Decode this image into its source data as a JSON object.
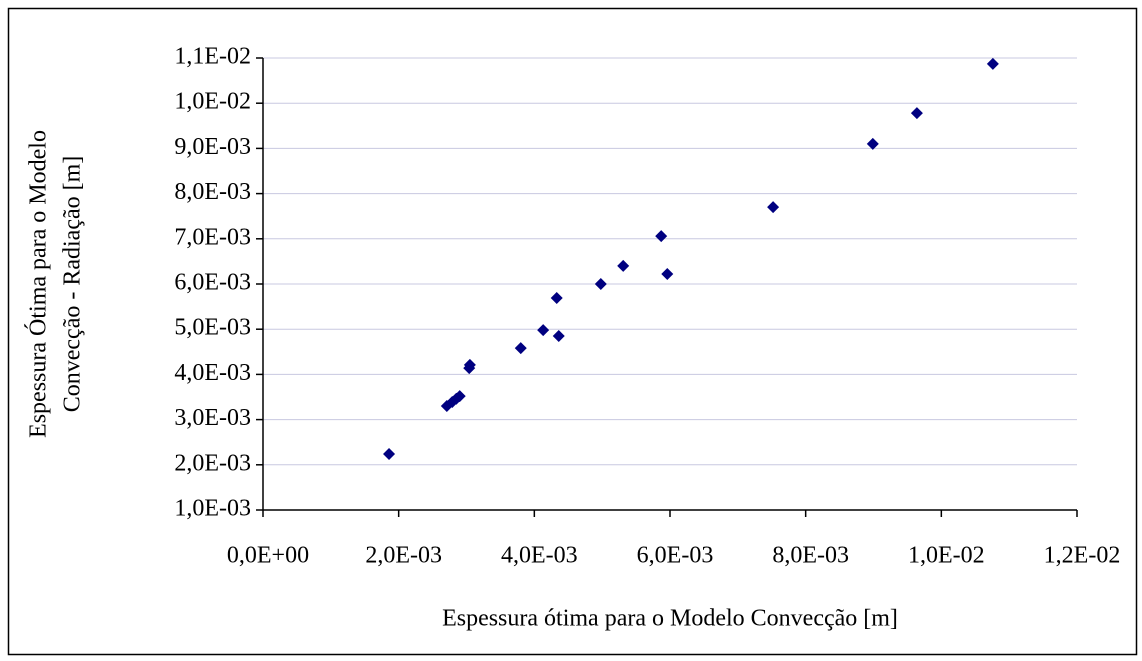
{
  "chart_data": {
    "type": "scatter",
    "xlabel": "Espessura ótima para o Modelo Convecção [m]",
    "ylabel": [
      "Espessura Ótima para o Modelo",
      "Convecção - Radiação [m]"
    ],
    "color": "#000080",
    "x": [
      0.001858,
      0.00271,
      0.00279,
      0.00285,
      0.0029,
      0.00304,
      0.00305,
      0.0038,
      0.00413,
      0.00436,
      0.00433,
      0.00498,
      0.00531,
      0.00587,
      0.00596,
      0.00752,
      0.00899,
      0.00964,
      0.01076
    ],
    "values": [
      0.00224,
      0.0033,
      0.00339,
      0.00346,
      0.00352,
      0.00414,
      0.00421,
      0.00458,
      0.00498,
      0.00485,
      0.00569,
      0.006,
      0.0064,
      0.00706,
      0.00622,
      0.0077,
      0.0091,
      0.00978,
      0.01087
    ],
    "xlim": [
      0,
      0.012
    ],
    "xticks": [
      {
        "value": 0,
        "label": "0,0E+00"
      },
      {
        "value": 0.002,
        "label": "2,0E-03"
      },
      {
        "value": 0.004,
        "label": "4,0E-03"
      },
      {
        "value": 0.006,
        "label": "6,0E-03"
      },
      {
        "value": 0.008,
        "label": "8,0E-03"
      },
      {
        "value": 0.01,
        "label": "1,0E-02"
      },
      {
        "value": 0.012,
        "label": "1,2E-02"
      }
    ],
    "ylim": [
      0.001,
      0.011
    ],
    "yticks": [
      {
        "value": 0.001,
        "label": "1,0E-03"
      },
      {
        "value": 0.002,
        "label": "2,0E-03"
      },
      {
        "value": 0.003,
        "label": "3,0E-03"
      },
      {
        "value": 0.004,
        "label": "4,0E-03"
      },
      {
        "value": 0.005,
        "label": "5,0E-03"
      },
      {
        "value": 0.006,
        "label": "6,0E-03"
      },
      {
        "value": 0.007,
        "label": "7,0E-03"
      },
      {
        "value": 0.008,
        "label": "8,0E-03"
      },
      {
        "value": 0.009,
        "label": "9,0E-03"
      },
      {
        "value": 0.01,
        "label": "1,0E-02"
      },
      {
        "value": 0.011,
        "label": "1,1E-02"
      }
    ],
    "grid": true
  }
}
